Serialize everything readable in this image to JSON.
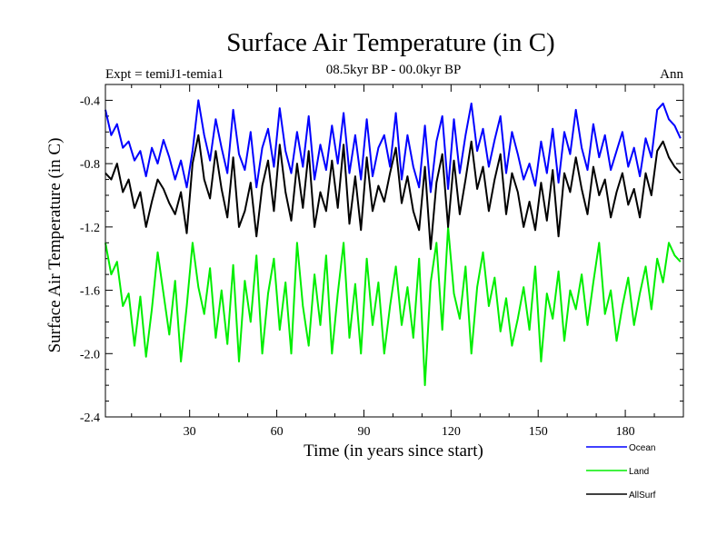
{
  "chart_data": {
    "type": "line",
    "title": "Surface Air Temperature (in C)",
    "subtitle": "08.5kyr BP - 00.0kyr BP",
    "left_note": "Expt = temiJ1-temia1",
    "right_note": "Ann",
    "xlabel": "Time (in years since start)",
    "ylabel": "Surface Air Temperature (in C)",
    "xlim": [
      1,
      200
    ],
    "ylim": [
      -2.4,
      -0.3
    ],
    "xticks": [
      30,
      60,
      90,
      120,
      150,
      180
    ],
    "yticks": [
      -0.4,
      -0.8,
      -1.2,
      -1.6,
      -2.0,
      -2.4
    ],
    "ytick_labels": [
      "-0.4",
      "-0.8",
      "-1.2",
      "-1.6",
      "-2.0",
      "-2.4"
    ],
    "legend_position": "bottom-right",
    "x": [
      1,
      3,
      5,
      7,
      9,
      11,
      13,
      15,
      17,
      19,
      21,
      23,
      25,
      27,
      29,
      31,
      33,
      35,
      37,
      39,
      41,
      43,
      45,
      47,
      49,
      51,
      53,
      55,
      57,
      59,
      61,
      63,
      65,
      67,
      69,
      71,
      73,
      75,
      77,
      79,
      81,
      83,
      85,
      87,
      89,
      91,
      93,
      95,
      97,
      99,
      101,
      103,
      105,
      107,
      109,
      111,
      113,
      115,
      117,
      119,
      121,
      123,
      125,
      127,
      129,
      131,
      133,
      135,
      137,
      139,
      141,
      143,
      145,
      147,
      149,
      151,
      153,
      155,
      157,
      159,
      161,
      163,
      165,
      167,
      169,
      171,
      173,
      175,
      177,
      179,
      181,
      183,
      185,
      187,
      189,
      191,
      193,
      195,
      197,
      199
    ],
    "series": [
      {
        "name": "Ocean",
        "color": "#0000ff",
        "values": [
          -0.46,
          -0.62,
          -0.55,
          -0.7,
          -0.66,
          -0.78,
          -0.72,
          -0.88,
          -0.7,
          -0.8,
          -0.65,
          -0.76,
          -0.9,
          -0.78,
          -0.95,
          -0.72,
          -0.4,
          -0.62,
          -0.78,
          -0.52,
          -0.7,
          -0.86,
          -0.46,
          -0.74,
          -0.84,
          -0.6,
          -0.95,
          -0.7,
          -0.58,
          -0.82,
          -0.45,
          -0.72,
          -0.86,
          -0.6,
          -0.82,
          -0.5,
          -0.9,
          -0.68,
          -0.84,
          -0.56,
          -0.8,
          -0.48,
          -0.86,
          -0.62,
          -0.9,
          -0.52,
          -0.88,
          -0.7,
          -0.62,
          -0.82,
          -0.48,
          -0.9,
          -0.62,
          -0.82,
          -0.95,
          -0.56,
          -0.98,
          -0.66,
          -0.5,
          -0.96,
          -0.52,
          -0.86,
          -0.62,
          -0.42,
          -0.72,
          -0.58,
          -0.82,
          -0.65,
          -0.5,
          -0.86,
          -0.6,
          -0.74,
          -0.9,
          -0.8,
          -0.94,
          -0.66,
          -0.86,
          -0.58,
          -0.92,
          -0.6,
          -0.74,
          -0.46,
          -0.7,
          -0.84,
          -0.55,
          -0.76,
          -0.62,
          -0.84,
          -0.72,
          -0.6,
          -0.82,
          -0.7,
          -0.88,
          -0.64,
          -0.76,
          -0.46,
          -0.42,
          -0.52,
          -0.56,
          -0.64
        ]
      },
      {
        "name": "Land",
        "color": "#00ee00",
        "values": [
          -1.3,
          -1.5,
          -1.42,
          -1.7,
          -1.62,
          -1.95,
          -1.64,
          -2.02,
          -1.72,
          -1.36,
          -1.62,
          -1.88,
          -1.54,
          -2.05,
          -1.7,
          -1.3,
          -1.58,
          -1.75,
          -1.46,
          -1.9,
          -1.6,
          -1.94,
          -1.44,
          -2.05,
          -1.54,
          -1.8,
          -1.38,
          -2.0,
          -1.62,
          -1.4,
          -1.85,
          -1.55,
          -2.0,
          -1.3,
          -1.7,
          -1.95,
          -1.5,
          -1.82,
          -1.38,
          -2.0,
          -1.62,
          -1.3,
          -1.9,
          -1.56,
          -2.0,
          -1.4,
          -1.82,
          -1.55,
          -2.0,
          -1.7,
          -1.45,
          -1.82,
          -1.58,
          -1.9,
          -1.4,
          -2.2,
          -1.55,
          -1.3,
          -1.85,
          -1.2,
          -1.62,
          -1.78,
          -1.45,
          -2.0,
          -1.58,
          -1.36,
          -1.7,
          -1.52,
          -1.86,
          -1.65,
          -1.95,
          -1.78,
          -1.58,
          -1.85,
          -1.45,
          -2.05,
          -1.62,
          -1.78,
          -1.48,
          -1.92,
          -1.6,
          -1.72,
          -1.5,
          -1.82,
          -1.55,
          -1.3,
          -1.75,
          -1.6,
          -1.92,
          -1.7,
          -1.52,
          -1.82,
          -1.62,
          -1.45,
          -1.72,
          -1.4,
          -1.55,
          -1.3,
          -1.38,
          -1.42
        ]
      },
      {
        "name": "AllSurf",
        "color": "#000000",
        "values": [
          -0.86,
          -0.9,
          -0.8,
          -0.98,
          -0.9,
          -1.08,
          -0.98,
          -1.2,
          -1.04,
          -0.9,
          -0.96,
          -1.05,
          -1.12,
          -0.98,
          -1.24,
          -0.8,
          -0.62,
          -0.9,
          -1.02,
          -0.72,
          -0.96,
          -1.14,
          -0.76,
          -1.2,
          -1.1,
          -0.92,
          -1.26,
          -0.94,
          -0.78,
          -1.1,
          -0.68,
          -0.98,
          -1.16,
          -0.8,
          -1.08,
          -0.72,
          -1.2,
          -0.98,
          -1.1,
          -0.78,
          -1.08,
          -0.68,
          -1.18,
          -0.88,
          -1.22,
          -0.76,
          -1.1,
          -0.94,
          -1.04,
          -0.86,
          -0.7,
          -1.05,
          -0.88,
          -1.1,
          -1.22,
          -0.82,
          -1.34,
          -0.92,
          -0.74,
          -1.2,
          -0.78,
          -1.12,
          -0.9,
          -0.66,
          -0.96,
          -0.82,
          -1.1,
          -0.9,
          -0.74,
          -1.12,
          -0.86,
          -0.98,
          -1.2,
          -1.04,
          -1.22,
          -0.92,
          -1.16,
          -0.84,
          -1.26,
          -0.86,
          -0.98,
          -0.76,
          -0.96,
          -1.12,
          -0.82,
          -1.0,
          -0.9,
          -1.14,
          -0.98,
          -0.86,
          -1.06,
          -0.96,
          -1.14,
          -0.86,
          -1.0,
          -0.72,
          -0.66,
          -0.76,
          -0.82,
          -0.86
        ]
      }
    ]
  }
}
